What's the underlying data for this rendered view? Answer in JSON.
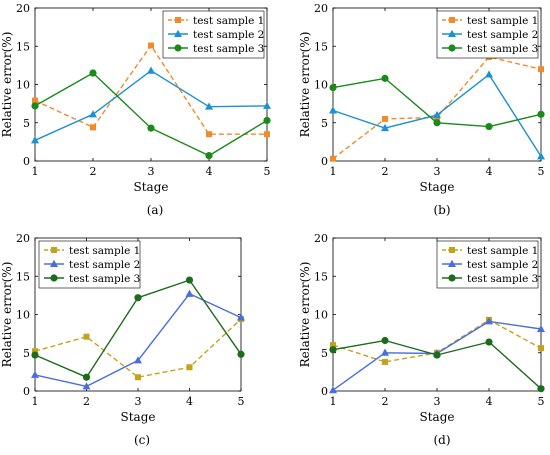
{
  "chart_data": [
    {
      "type": "line",
      "caption": "(a)",
      "xlabel": "Stage",
      "ylabel": "Relative error(%)",
      "x": [
        1,
        2,
        3,
        4,
        5
      ],
      "xlim": [
        1,
        5
      ],
      "ylim": [
        0,
        20
      ],
      "xticks": [
        1,
        2,
        3,
        4,
        5
      ],
      "yticks": [
        0,
        5,
        10,
        15,
        20
      ],
      "legend_position": "top-right",
      "series": [
        {
          "name": "test sample 1",
          "values": [
            7.9,
            4.4,
            15.1,
            3.5,
            3.5
          ],
          "color": "#f28a2a",
          "marker": "square",
          "dash": "dashed"
        },
        {
          "name": "test sample 2",
          "values": [
            2.7,
            6.1,
            11.8,
            7.1,
            7.2
          ],
          "color": "#1a90d6",
          "marker": "triangle",
          "dash": "solid"
        },
        {
          "name": "test sample 3",
          "values": [
            7.2,
            11.5,
            4.3,
            0.7,
            5.3
          ],
          "color": "#1a8a1a",
          "marker": "circle",
          "dash": "solid"
        }
      ]
    },
    {
      "type": "line",
      "caption": "(b)",
      "xlabel": "Stage",
      "ylabel": "Relative error(%)",
      "x": [
        1,
        2,
        3,
        4,
        5
      ],
      "xlim": [
        1,
        5
      ],
      "ylim": [
        0,
        20
      ],
      "xticks": [
        1,
        2,
        3,
        4,
        5
      ],
      "yticks": [
        0,
        5,
        10,
        15,
        20
      ],
      "legend_position": "top-right",
      "series": [
        {
          "name": "test sample 1",
          "values": [
            0.3,
            5.5,
            5.7,
            13.6,
            12.0
          ],
          "color": "#f28a2a",
          "marker": "square",
          "dash": "dashed"
        },
        {
          "name": "test sample 2",
          "values": [
            6.6,
            4.3,
            6.0,
            11.3,
            0.6
          ],
          "color": "#1a90d6",
          "marker": "triangle",
          "dash": "solid"
        },
        {
          "name": "test sample 3",
          "values": [
            9.6,
            10.8,
            5.0,
            4.5,
            6.1
          ],
          "color": "#1a8a1a",
          "marker": "circle",
          "dash": "solid"
        }
      ]
    },
    {
      "type": "line",
      "caption": "(c)",
      "xlabel": "Stage",
      "ylabel": "Relative error(%)",
      "x": [
        1,
        2,
        3,
        4,
        5
      ],
      "xlim": [
        1,
        5
      ],
      "ylim": [
        0,
        20
      ],
      "xticks": [
        1,
        2,
        3,
        4,
        5
      ],
      "yticks": [
        0,
        5,
        10,
        15,
        20
      ],
      "legend_position": "top-left",
      "series": [
        {
          "name": "test sample 1",
          "values": [
            5.2,
            7.1,
            1.8,
            3.1,
            9.4
          ],
          "color": "#c4a21b",
          "marker": "square",
          "dash": "dashed"
        },
        {
          "name": "test sample 2",
          "values": [
            2.1,
            0.6,
            4.0,
            12.7,
            9.6
          ],
          "color": "#4a6ee0",
          "marker": "triangle",
          "dash": "solid"
        },
        {
          "name": "test sample 3",
          "values": [
            4.7,
            1.8,
            12.2,
            14.5,
            4.8
          ],
          "color": "#1d6b1d",
          "marker": "circle",
          "dash": "solid"
        }
      ]
    },
    {
      "type": "line",
      "caption": "(d)",
      "xlabel": "Stage",
      "ylabel": "Relative error(%)",
      "x": [
        1,
        2,
        3,
        4,
        5
      ],
      "xlim": [
        1,
        5
      ],
      "ylim": [
        0,
        20
      ],
      "xticks": [
        1,
        2,
        3,
        4,
        5
      ],
      "yticks": [
        0,
        5,
        10,
        15,
        20
      ],
      "legend_position": "top-right",
      "series": [
        {
          "name": "test sample 1",
          "values": [
            6.0,
            3.8,
            5.0,
            9.3,
            5.6
          ],
          "color": "#c4a21b",
          "marker": "square",
          "dash": "dashed"
        },
        {
          "name": "test sample 2",
          "values": [
            0.1,
            5.0,
            4.9,
            9.1,
            8.1
          ],
          "color": "#4a6ee0",
          "marker": "triangle",
          "dash": "solid"
        },
        {
          "name": "test sample 3",
          "values": [
            5.4,
            6.6,
            4.7,
            6.4,
            0.3
          ],
          "color": "#1d6b1d",
          "marker": "circle",
          "dash": "solid"
        }
      ]
    }
  ]
}
